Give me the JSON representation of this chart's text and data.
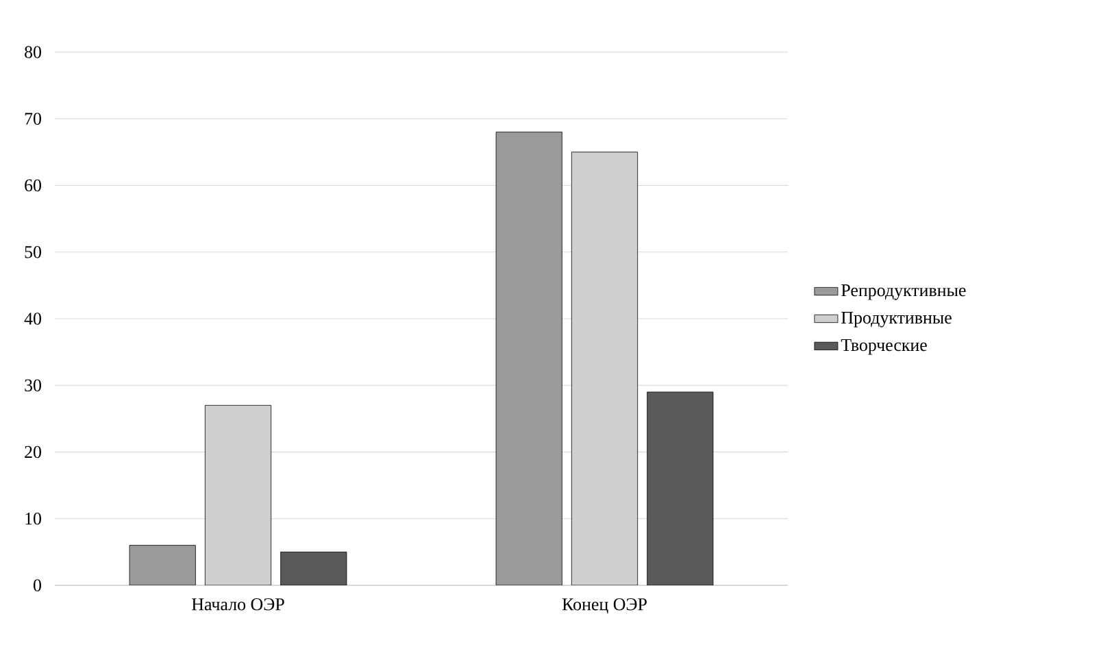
{
  "chart_data": {
    "type": "bar",
    "categories": [
      "Начало ОЭР",
      "Конец ОЭР"
    ],
    "series": [
      {
        "name": "Репродуктивные",
        "color": "#9a9a9a",
        "values": [
          6,
          68
        ]
      },
      {
        "name": "Продуктивные",
        "color": "#cfcfcf",
        "values": [
          27,
          65
        ]
      },
      {
        "name": "Творческие",
        "color": "#5a5a5a",
        "values": [
          5,
          29
        ]
      }
    ],
    "ylim": [
      0,
      80
    ],
    "yticks": [
      0,
      10,
      20,
      30,
      40,
      50,
      60,
      70,
      80
    ],
    "grid": "y",
    "legend": "right"
  }
}
